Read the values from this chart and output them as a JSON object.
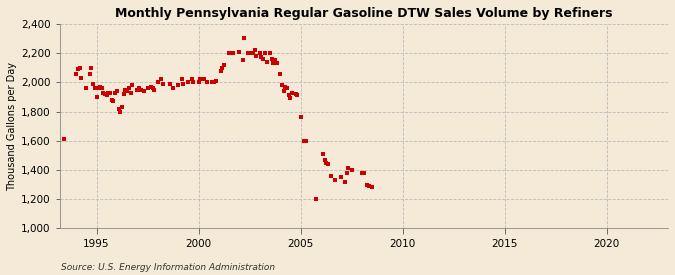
{
  "title": "Monthly Pennsylvania Regular Gasoline DTW Sales Volume by Refiners",
  "ylabel": "Thousand Gallons per Day",
  "source": "Source: U.S. Energy Information Administration",
  "background_color": "#f5ead8",
  "dot_color": "#cc0000",
  "ylim": [
    1000,
    2400
  ],
  "yticks": [
    1000,
    1200,
    1400,
    1600,
    1800,
    2000,
    2200,
    2400
  ],
  "xlim": [
    1993.2,
    2023.0
  ],
  "xticks": [
    1995,
    2000,
    2005,
    2010,
    2015,
    2020
  ],
  "data": [
    [
      1993.42,
      1610
    ],
    [
      1994.0,
      2060
    ],
    [
      1994.08,
      2090
    ],
    [
      1994.17,
      2100
    ],
    [
      1994.25,
      2030
    ],
    [
      1994.5,
      1960
    ],
    [
      1994.67,
      2060
    ],
    [
      1994.75,
      2100
    ],
    [
      1994.83,
      1990
    ],
    [
      1994.92,
      1960
    ],
    [
      1995.0,
      1900
    ],
    [
      1995.08,
      1960
    ],
    [
      1995.17,
      1970
    ],
    [
      1995.25,
      1960
    ],
    [
      1995.33,
      1930
    ],
    [
      1995.42,
      1920
    ],
    [
      1995.5,
      1910
    ],
    [
      1995.58,
      1930
    ],
    [
      1995.67,
      1930
    ],
    [
      1995.75,
      1880
    ],
    [
      1995.83,
      1870
    ],
    [
      1995.92,
      1930
    ],
    [
      1996.0,
      1940
    ],
    [
      1996.08,
      1820
    ],
    [
      1996.17,
      1800
    ],
    [
      1996.25,
      1830
    ],
    [
      1996.33,
      1920
    ],
    [
      1996.42,
      1950
    ],
    [
      1996.5,
      1940
    ],
    [
      1996.58,
      1960
    ],
    [
      1996.67,
      1930
    ],
    [
      1996.75,
      1980
    ],
    [
      1997.0,
      1950
    ],
    [
      1997.08,
      1960
    ],
    [
      1997.17,
      1950
    ],
    [
      1997.33,
      1940
    ],
    [
      1997.5,
      1960
    ],
    [
      1997.67,
      1970
    ],
    [
      1997.75,
      1960
    ],
    [
      1997.83,
      1950
    ],
    [
      1998.0,
      2000
    ],
    [
      1998.17,
      2020
    ],
    [
      1998.25,
      1990
    ],
    [
      1998.58,
      1990
    ],
    [
      1998.75,
      1960
    ],
    [
      1999.0,
      1980
    ],
    [
      1999.17,
      2020
    ],
    [
      1999.25,
      1990
    ],
    [
      1999.5,
      2000
    ],
    [
      1999.67,
      2020
    ],
    [
      1999.75,
      2000
    ],
    [
      2000.0,
      2000
    ],
    [
      2000.08,
      2020
    ],
    [
      2000.17,
      2020
    ],
    [
      2000.25,
      2020
    ],
    [
      2000.42,
      2000
    ],
    [
      2000.67,
      2000
    ],
    [
      2000.75,
      2000
    ],
    [
      2000.83,
      2010
    ],
    [
      2001.08,
      2080
    ],
    [
      2001.17,
      2100
    ],
    [
      2001.25,
      2120
    ],
    [
      2001.5,
      2200
    ],
    [
      2001.67,
      2200
    ],
    [
      2002.0,
      2210
    ],
    [
      2002.17,
      2150
    ],
    [
      2002.25,
      2300
    ],
    [
      2002.42,
      2200
    ],
    [
      2002.5,
      2200
    ],
    [
      2002.67,
      2200
    ],
    [
      2002.75,
      2220
    ],
    [
      2002.83,
      2180
    ],
    [
      2003.0,
      2200
    ],
    [
      2003.08,
      2170
    ],
    [
      2003.17,
      2160
    ],
    [
      2003.25,
      2200
    ],
    [
      2003.33,
      2140
    ],
    [
      2003.5,
      2200
    ],
    [
      2003.58,
      2160
    ],
    [
      2003.67,
      2130
    ],
    [
      2003.75,
      2150
    ],
    [
      2003.83,
      2130
    ],
    [
      2004.0,
      2060
    ],
    [
      2004.08,
      1980
    ],
    [
      2004.17,
      1940
    ],
    [
      2004.25,
      1970
    ],
    [
      2004.33,
      1960
    ],
    [
      2004.42,
      1910
    ],
    [
      2004.5,
      1890
    ],
    [
      2004.58,
      1930
    ],
    [
      2004.75,
      1920
    ],
    [
      2004.83,
      1910
    ],
    [
      2005.0,
      1760
    ],
    [
      2005.17,
      1600
    ],
    [
      2005.25,
      1600
    ],
    [
      2005.75,
      1200
    ],
    [
      2006.08,
      1510
    ],
    [
      2006.17,
      1470
    ],
    [
      2006.25,
      1445
    ],
    [
      2006.33,
      1440
    ],
    [
      2006.5,
      1360
    ],
    [
      2006.67,
      1330
    ],
    [
      2007.0,
      1350
    ],
    [
      2007.17,
      1320
    ],
    [
      2007.25,
      1380
    ],
    [
      2007.33,
      1410
    ],
    [
      2007.5,
      1400
    ],
    [
      2008.0,
      1380
    ],
    [
      2008.08,
      1380
    ],
    [
      2008.25,
      1300
    ],
    [
      2008.33,
      1290
    ],
    [
      2008.5,
      1280
    ]
  ]
}
